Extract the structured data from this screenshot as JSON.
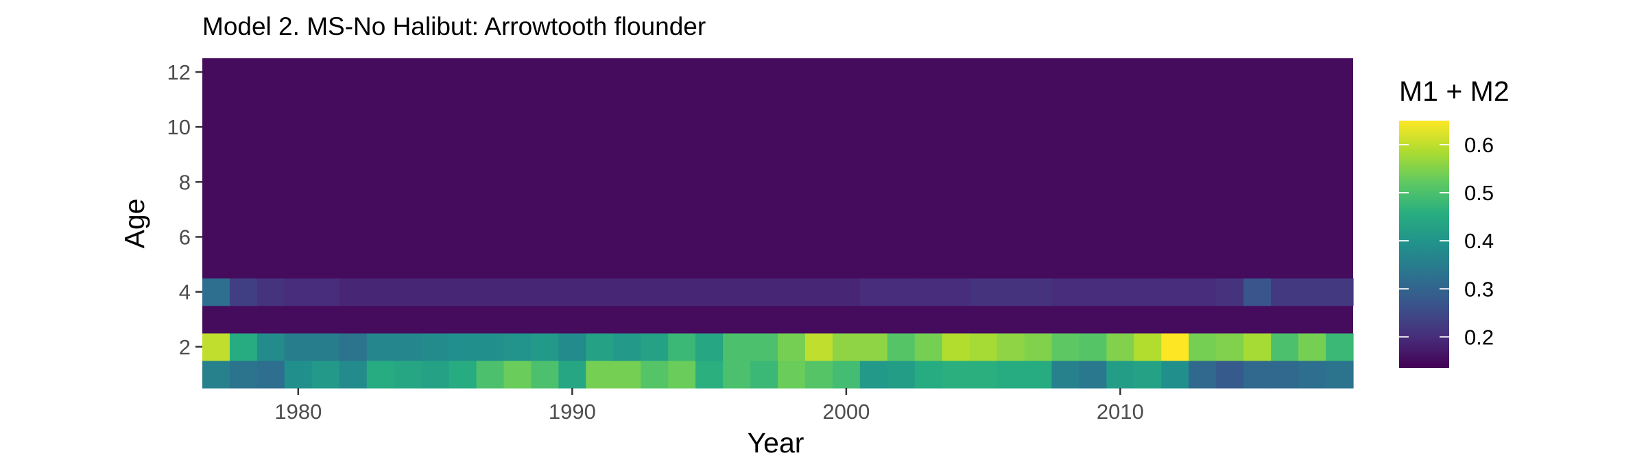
{
  "chart_data": {
    "type": "heatmap",
    "title": "Model 2. MS-No Halibut: Arrowtooth flounder",
    "xlabel": "Year",
    "ylabel": "Age",
    "x": [
      1977,
      1978,
      1979,
      1980,
      1981,
      1982,
      1983,
      1984,
      1985,
      1986,
      1987,
      1988,
      1989,
      1990,
      1991,
      1992,
      1993,
      1994,
      1995,
      1996,
      1997,
      1998,
      1999,
      2000,
      2001,
      2002,
      2003,
      2004,
      2005,
      2006,
      2007,
      2008,
      2009,
      2010,
      2011,
      2012,
      2013,
      2014,
      2015,
      2016,
      2017,
      2018
    ],
    "xlim": [
      1976.5,
      2018.5
    ],
    "ylim": [
      0.5,
      12.5
    ],
    "x_ticks": [
      1980,
      1990,
      2000,
      2010
    ],
    "y_ticks": [
      2,
      4,
      6,
      8,
      10,
      12
    ],
    "rows": [
      {
        "age": 1,
        "values": [
          0.36,
          0.33,
          0.32,
          0.39,
          0.41,
          0.38,
          0.45,
          0.44,
          0.43,
          0.45,
          0.5,
          0.53,
          0.5,
          0.44,
          0.54,
          0.54,
          0.51,
          0.53,
          0.46,
          0.5,
          0.48,
          0.53,
          0.51,
          0.49,
          0.41,
          0.42,
          0.45,
          0.46,
          0.46,
          0.45,
          0.45,
          0.36,
          0.34,
          0.42,
          0.43,
          0.39,
          0.31,
          0.28,
          0.31,
          0.31,
          0.32,
          0.33
        ]
      },
      {
        "age": 2,
        "values": [
          0.6,
          0.45,
          0.38,
          0.35,
          0.35,
          0.33,
          0.37,
          0.37,
          0.38,
          0.39,
          0.39,
          0.4,
          0.41,
          0.38,
          0.43,
          0.41,
          0.43,
          0.48,
          0.44,
          0.5,
          0.5,
          0.54,
          0.6,
          0.56,
          0.56,
          0.51,
          0.54,
          0.59,
          0.58,
          0.56,
          0.55,
          0.52,
          0.51,
          0.55,
          0.59,
          0.65,
          0.54,
          0.55,
          0.58,
          0.5,
          0.54,
          0.48
        ]
      },
      {
        "age": 3,
        "value": 0.15
      },
      {
        "age": 4,
        "values": [
          0.32,
          0.23,
          0.21,
          0.2,
          0.2,
          0.19,
          0.19,
          0.19,
          0.19,
          0.19,
          0.19,
          0.19,
          0.19,
          0.19,
          0.19,
          0.19,
          0.19,
          0.19,
          0.19,
          0.19,
          0.19,
          0.19,
          0.19,
          0.19,
          0.2,
          0.2,
          0.2,
          0.2,
          0.21,
          0.21,
          0.21,
          0.2,
          0.2,
          0.2,
          0.2,
          0.2,
          0.2,
          0.21,
          0.27,
          0.22,
          0.22,
          0.22
        ]
      },
      {
        "age": "5-12",
        "value": 0.15
      }
    ],
    "legend": {
      "title": "M1 + M2",
      "position": "right",
      "min": 0.135,
      "max": 0.65,
      "breaks": [
        0.2,
        0.3,
        0.4,
        0.5,
        0.6
      ],
      "labels": [
        "0.2",
        "0.3",
        "0.4",
        "0.5",
        "0.6"
      ],
      "colormap": "viridis"
    }
  }
}
